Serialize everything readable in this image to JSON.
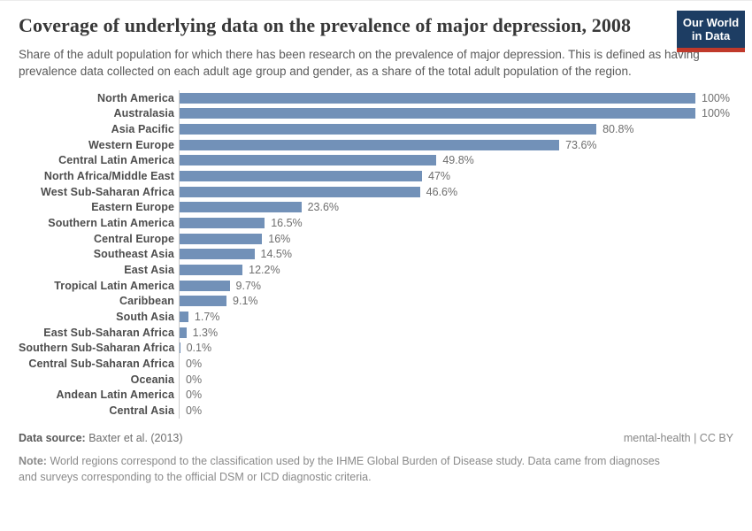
{
  "header": {
    "title": "Coverage of underlying data on the prevalence of major depression, 2008",
    "subtitle": "Share of the adult population for which there has been research on the prevalence of major depression. This is defined as having prevalence data collected on each adult age group and gender, as a share of the total adult population of the region.",
    "logo": {
      "line1": "Our World",
      "line2": "in Data",
      "bg_color": "#1d3d63",
      "accent_color": "#c0392b"
    }
  },
  "chart_data": {
    "type": "bar",
    "orientation": "horizontal",
    "title": "Coverage of underlying data on the prevalence of major depression, 2008",
    "xlabel": "",
    "ylabel": "",
    "xlim": [
      0,
      100
    ],
    "grid": false,
    "legend": "none",
    "bar_color": "#7291b8",
    "axis_line_color": "#cccccc",
    "categories": [
      "North America",
      "Australasia",
      "Asia Pacific",
      "Western Europe",
      "Central Latin America",
      "North Africa/Middle East",
      "West Sub-Saharan Africa",
      "Eastern Europe",
      "Southern Latin America",
      "Central Europe",
      "Southeast Asia",
      "East Asia",
      "Tropical Latin America",
      "Caribbean",
      "South Asia",
      "East Sub-Saharan Africa",
      "Southern Sub-Saharan Africa",
      "Central Sub-Saharan Africa",
      "Oceania",
      "Andean Latin America",
      "Central Asia"
    ],
    "values": [
      100,
      100,
      80.8,
      73.6,
      49.8,
      47,
      46.6,
      23.6,
      16.5,
      16,
      14.5,
      12.2,
      9.7,
      9.1,
      1.7,
      1.3,
      0.1,
      0,
      0,
      0,
      0
    ],
    "value_labels": [
      "100%",
      "100%",
      "80.8%",
      "73.6%",
      "49.8%",
      "47%",
      "46.6%",
      "23.6%",
      "16.5%",
      "16%",
      "14.5%",
      "12.2%",
      "9.7%",
      "9.1%",
      "1.7%",
      "1.3%",
      "0.1%",
      "0%",
      "0%",
      "0%",
      "0%"
    ]
  },
  "footer": {
    "data_source_label": "Data source:",
    "data_source_value": "Baxter et al. (2013)",
    "license_left": "mental-health",
    "license_separator": "|",
    "license_right": "CC BY",
    "note_label": "Note:",
    "note_text": "World regions correspond to the classification used by the IHME Global Burden of Disease study. Data came from diagnoses and surveys corresponding to the official DSM or ICD diagnostic criteria."
  }
}
